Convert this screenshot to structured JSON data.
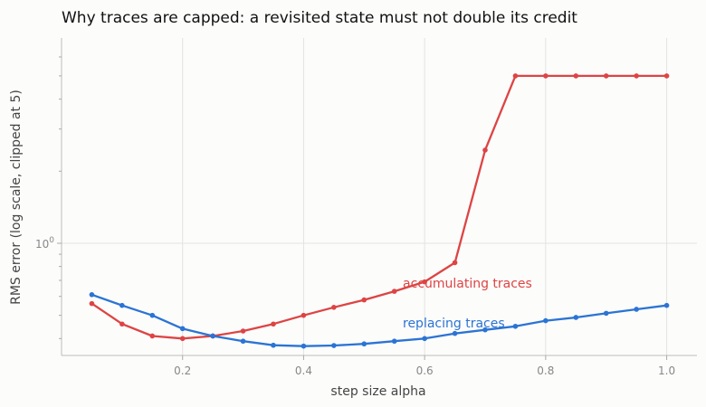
{
  "chart_data": {
    "type": "line",
    "title": "Why traces are capped: a revisited state must not double its credit",
    "xlabel": "step size alpha",
    "ylabel": "RMS error (log scale, clipped at 5)",
    "yscale": "log",
    "xlim": [
      0.0,
      1.05
    ],
    "ylim": [
      0.34,
      7.2
    ],
    "xticks": [
      0.2,
      0.4,
      0.6,
      0.8,
      1.0
    ],
    "xtick_labels": [
      "0.2",
      "0.4",
      "0.6",
      "0.8",
      "1.0"
    ],
    "ytick_major": [
      {
        "value": 1.0,
        "base": "10",
        "exp": "0"
      }
    ],
    "ytick_minor": [
      0.4,
      0.5,
      0.6,
      0.7,
      0.8,
      0.9,
      2,
      3,
      4,
      5,
      6
    ],
    "grid": "vertical-major and horizontal-major",
    "x": [
      0.05,
      0.1,
      0.15,
      0.2,
      0.25,
      0.3,
      0.35,
      0.4,
      0.45,
      0.5,
      0.55,
      0.6,
      0.65,
      0.7,
      0.75,
      0.8,
      0.85,
      0.9,
      0.95,
      1.0
    ],
    "series": [
      {
        "name": "accumulating traces",
        "color": "#dd4444",
        "values": [
          0.56,
          0.46,
          0.41,
          0.4,
          0.41,
          0.43,
          0.46,
          0.5,
          0.54,
          0.58,
          0.63,
          0.69,
          0.83,
          2.45,
          5.0,
          5.0,
          5.0,
          5.0,
          5.0,
          5.0
        ]
      },
      {
        "name": "replacing traces",
        "color": "#2b74d4",
        "values": [
          0.61,
          0.55,
          0.5,
          0.44,
          0.41,
          0.39,
          0.375,
          0.372,
          0.374,
          0.38,
          0.39,
          0.4,
          0.42,
          0.435,
          0.45,
          0.475,
          0.49,
          0.51,
          0.53,
          0.55
        ]
      }
    ]
  }
}
